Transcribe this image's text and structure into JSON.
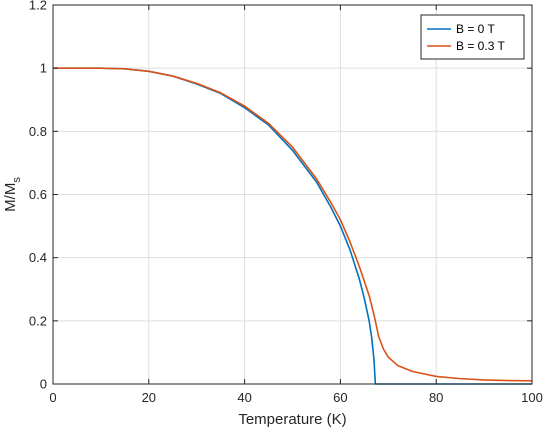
{
  "chart_data": {
    "type": "line",
    "xlabel": "Temperature (K)",
    "ylabel": "M/M",
    "ylabel_subscript": "s",
    "xlim": [
      0,
      100
    ],
    "ylim": [
      0,
      1.2
    ],
    "xticks": [
      0,
      20,
      40,
      60,
      80,
      100
    ],
    "yticks": [
      0,
      0.2,
      0.4,
      0.6,
      0.8,
      1,
      1.2
    ],
    "xtick_labels": [
      "0",
      "20",
      "40",
      "60",
      "80",
      "100"
    ],
    "ytick_labels": [
      "0",
      "0.2",
      "0.4",
      "0.6",
      "0.8",
      "1",
      "1.2"
    ],
    "grid": true,
    "legend_position": "top-right",
    "colors": {
      "series0": "#0072BD",
      "series1": "#D95319",
      "grid": "#dfdfdf",
      "axis": "#262626"
    },
    "series": [
      {
        "name": "B = 0 T",
        "x": [
          0,
          10,
          15,
          20,
          25,
          30,
          35,
          40,
          45,
          50,
          55,
          58,
          60,
          62,
          64,
          65,
          66,
          66.5,
          67,
          67.3,
          67.5,
          70,
          75,
          80,
          85,
          90,
          95,
          100
        ],
        "y": [
          1.0,
          1.0,
          0.998,
          0.99,
          0.975,
          0.95,
          0.92,
          0.875,
          0.82,
          0.74,
          0.64,
          0.56,
          0.5,
          0.425,
          0.33,
          0.27,
          0.2,
          0.15,
          0.08,
          0.0,
          0.0,
          0.0,
          0.0,
          0.0,
          0.0,
          0.0,
          0.0,
          0.0
        ]
      },
      {
        "name": "B = 0.3 T",
        "x": [
          0,
          10,
          15,
          20,
          25,
          30,
          35,
          40,
          45,
          50,
          55,
          58,
          60,
          62,
          64,
          66,
          67,
          68,
          69,
          70,
          72,
          75,
          80,
          85,
          90,
          95,
          100
        ],
        "y": [
          1.0,
          1.0,
          0.998,
          0.99,
          0.975,
          0.952,
          0.922,
          0.88,
          0.825,
          0.75,
          0.65,
          0.575,
          0.52,
          0.45,
          0.37,
          0.28,
          0.22,
          0.15,
          0.11,
          0.085,
          0.058,
          0.04,
          0.024,
          0.017,
          0.013,
          0.011,
          0.01
        ]
      }
    ]
  }
}
